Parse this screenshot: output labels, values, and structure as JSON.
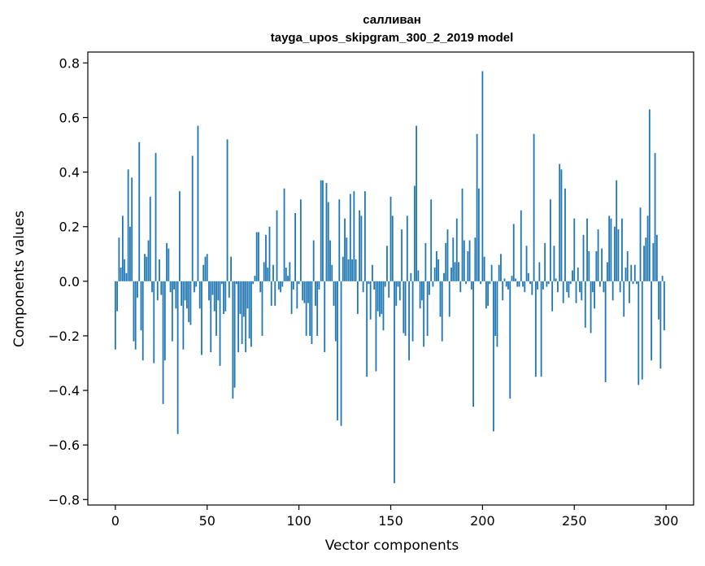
{
  "chart_data": {
    "type": "bar",
    "title": "салливан",
    "subtitle": "tayga_upos_skipgram_300_2_2019 model",
    "xlabel": "Vector components",
    "ylabel": "Components values",
    "xlim": [
      -15,
      315
    ],
    "ylim": [
      -0.82,
      0.84
    ],
    "x_ticks": [
      0,
      50,
      100,
      150,
      200,
      250,
      300
    ],
    "y_ticks": [
      -0.8,
      -0.6,
      -0.4,
      -0.2,
      0.0,
      0.2,
      0.4,
      0.6,
      0.8
    ],
    "x_tick_labels": [
      "0",
      "50",
      "100",
      "150",
      "200",
      "250",
      "300"
    ],
    "y_tick_labels": [
      "−0.8",
      "−0.6",
      "−0.4",
      "−0.2",
      "0.0",
      "0.2",
      "0.4",
      "0.6",
      "0.8"
    ],
    "grid": false,
    "bar_color": "#1f77b4",
    "values": [
      -0.25,
      -0.11,
      0.16,
      0.05,
      0.24,
      0.08,
      0.03,
      0.41,
      0.2,
      0.38,
      -0.22,
      -0.25,
      -0.06,
      0.51,
      -0.18,
      -0.29,
      0.1,
      0.09,
      0.15,
      0.31,
      -0.04,
      -0.3,
      0.47,
      -0.07,
      0.08,
      -0.05,
      -0.45,
      -0.29,
      0.14,
      0.12,
      -0.04,
      -0.22,
      -0.03,
      -0.1,
      -0.56,
      0.33,
      -0.09,
      -0.25,
      -0.07,
      -0.1,
      -0.15,
      -0.16,
      0.46,
      -0.04,
      -0.02,
      0.57,
      -0.1,
      -0.27,
      0.06,
      0.09,
      0.1,
      -0.07,
      -0.26,
      -0.05,
      -0.11,
      -0.2,
      -0.07,
      -0.31,
      -0.01,
      -0.12,
      -0.11,
      0.52,
      -0.06,
      0.09,
      -0.43,
      -0.39,
      -0.01,
      -0.26,
      -0.12,
      -0.23,
      -0.13,
      -0.26,
      -0.1,
      -0.21,
      -0.24,
      -0.01,
      0.02,
      0.18,
      0.18,
      -0.04,
      -0.2,
      0.07,
      0.17,
      0.05,
      0.2,
      -0.09,
      0.06,
      -0.09,
      0.26,
      -0.03,
      -0.04,
      -0.02,
      0.34,
      0.05,
      0.02,
      0.07,
      -0.12,
      -0.03,
      0.25,
      -0.1,
      -0.01,
      0.3,
      -0.07,
      -0.08,
      -0.2,
      -0.08,
      -0.2,
      -0.23,
      0.15,
      -0.09,
      -0.2,
      -0.03,
      0.37,
      0.37,
      -0.26,
      0.36,
      0.29,
      0.15,
      0.06,
      -0.09,
      -0.22,
      -0.51,
      0.3,
      -0.53,
      0.09,
      0.23,
      0.16,
      0.08,
      0.32,
      0.08,
      0.33,
      0.08,
      -0.12,
      0.26,
      0.24,
      -0.04,
      0.33,
      -0.35,
      -0.01,
      -0.14,
      0.06,
      -0.03,
      -0.33,
      -0.11,
      -0.13,
      -0.12,
      -0.18,
      -0.02,
      0.13,
      -0.06,
      0.31,
      0.24,
      -0.74,
      -0.09,
      -0.02,
      -0.07,
      0.19,
      -0.19,
      -0.2,
      0.24,
      -0.29,
      0.03,
      -0.22,
      0.35,
      0.57,
      0.04,
      -0.1,
      -0.07,
      -0.24,
      0.14,
      -0.2,
      -0.05,
      0.3,
      -0.02,
      0.05,
      0.11,
      0.08,
      -0.13,
      -0.22,
      0.03,
      0.14,
      0.19,
      -0.13,
      0.05,
      0.16,
      0.07,
      0.23,
      0.07,
      -0.04,
      0.34,
      0.15,
      -0.01,
      0.11,
      0.15,
      -0.03,
      -0.46,
      0.16,
      0.54,
      0.34,
      -0.01,
      0.77,
      0.09,
      -0.1,
      -0.09,
      -0.01,
      0.06,
      -0.55,
      -0.2,
      -0.24,
      0.06,
      0.1,
      -0.07,
      0.01,
      -0.02,
      -0.03,
      -0.43,
      0.02,
      0.21,
      0.01,
      -0.02,
      -0.02,
      0.26,
      -0.02,
      -0.04,
      0.13,
      0.03,
      -0.01,
      -0.05,
      0.54,
      -0.35,
      -0.03,
      0.07,
      -0.35,
      -0.03,
      0.14,
      -0.02,
      -0.01,
      0.3,
      -0.11,
      0.13,
      0.01,
      -0.04,
      0.43,
      0.41,
      -0.08,
      0.34,
      -0.04,
      -0.06,
      -0.01,
      0.04,
      0.23,
      -0.08,
      0.05,
      -0.04,
      -0.07,
      0.17,
      -0.17,
      0.23,
      0.11,
      -0.19,
      -0.04,
      -0.1,
      0.11,
      0.19,
      -0.02,
      0.12,
      -0.04,
      -0.37,
      0.07,
      0.24,
      0.23,
      -0.07,
      0.2,
      0.37,
      0.19,
      -0.04,
      0.23,
      -0.13,
      0.05,
      0.11,
      -0.08,
      0.06,
      -0.01,
      0.06,
      -0.01,
      -0.38,
      0.27,
      -0.36,
      0.13,
      0.16,
      0.24,
      0.63,
      -0.29,
      0.14,
      0.47,
      0.17,
      -0.14,
      -0.32,
      0.02,
      -0.18
    ]
  }
}
